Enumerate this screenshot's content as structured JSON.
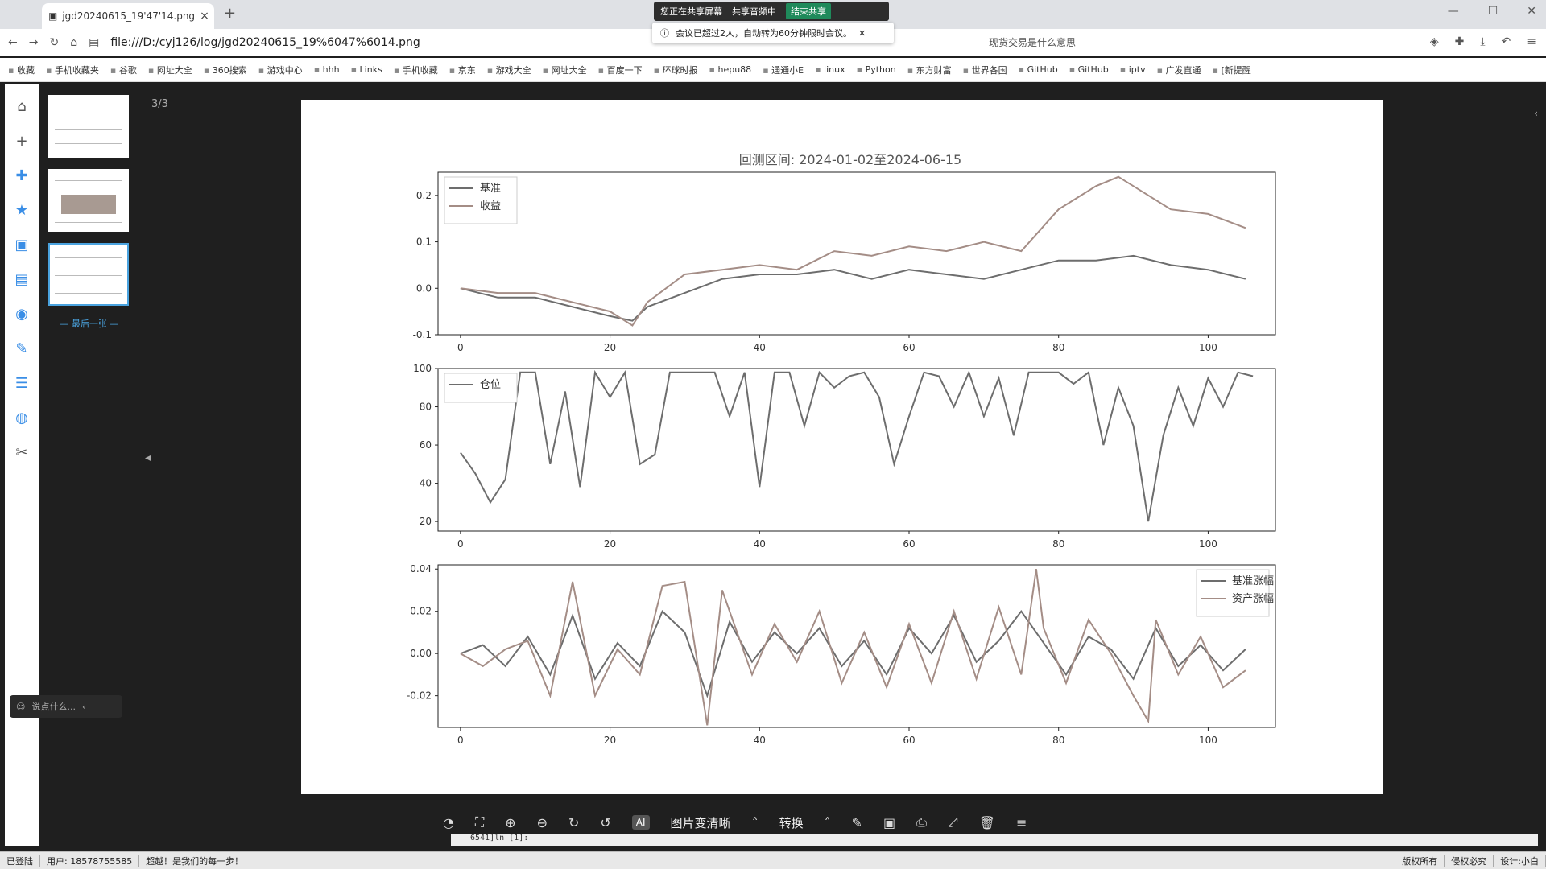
{
  "browser": {
    "tab_title": "jgd20240615_19'47'14.png",
    "tab_close": "×",
    "new_tab": "+",
    "share_status": "您正在共享屏幕",
    "share_audio": "共享音频中",
    "share_end": "结束共享",
    "meeting_notice": "会议已超过2人，自动转为60分钟限时会议。",
    "notice_close": "✕",
    "url": "file:///D:/cyj126/log/jgd20240615_19%6047%6014.png",
    "search_query": "现货交易是什么意思",
    "bookmarks": [
      "收藏",
      "手机收藏夹",
      "谷歌",
      "网址大全",
      "360搜索",
      "游戏中心",
      "hhh",
      "Links",
      "手机收藏",
      "京东",
      "游戏大全",
      "网址大全",
      "百度一下",
      "环球时报",
      "hepu88",
      "通通小E",
      "linux",
      "Python",
      "东方财富",
      "世界各国",
      "GitHub",
      "GitHub",
      "iptv",
      "广发直通",
      "[新提醒"
    ]
  },
  "viewer": {
    "page_count": "3/3",
    "last_label": "— 最后一张 —",
    "chat_placeholder": "说点什么...",
    "toolbar_ai": "AI",
    "toolbar_enhance": "图片变清晰",
    "toolbar_convert": "转换",
    "console_text": "6541]ln [1]:"
  },
  "chart_data": {
    "title": "回测区间: 2024-01-02至2024-06-15",
    "panels": [
      {
        "type": "line",
        "ylim": [
          -0.1,
          0.25
        ],
        "yticks": [
          "0.2",
          "0.1",
          "0.0",
          "-0.1"
        ],
        "ytick_values": [
          0.2,
          0.1,
          0.0,
          -0.1
        ],
        "xticks": [
          "0",
          "20",
          "40",
          "60",
          "80",
          "100"
        ],
        "legend": "top-left",
        "series": [
          {
            "name": "基准",
            "x": [
              0,
              5,
              10,
              15,
              20,
              23,
              25,
              30,
              35,
              40,
              45,
              50,
              55,
              60,
              65,
              70,
              75,
              80,
              85,
              90,
              95,
              100,
              105
            ],
            "values": [
              0.0,
              -0.02,
              -0.02,
              -0.04,
              -0.06,
              -0.07,
              -0.04,
              -0.01,
              0.02,
              0.03,
              0.03,
              0.04,
              0.02,
              0.04,
              0.03,
              0.02,
              0.04,
              0.06,
              0.06,
              0.07,
              0.05,
              0.04,
              0.02
            ]
          },
          {
            "name": "收益",
            "x": [
              0,
              5,
              10,
              15,
              20,
              23,
              25,
              30,
              35,
              40,
              45,
              50,
              55,
              60,
              65,
              70,
              75,
              80,
              85,
              88,
              90,
              95,
              100,
              105
            ],
            "values": [
              0.0,
              -0.01,
              -0.01,
              -0.03,
              -0.05,
              -0.08,
              -0.03,
              0.03,
              0.04,
              0.05,
              0.04,
              0.08,
              0.07,
              0.09,
              0.08,
              0.1,
              0.08,
              0.17,
              0.22,
              0.24,
              0.22,
              0.17,
              0.16,
              0.13
            ]
          }
        ]
      },
      {
        "type": "line",
        "ylim": [
          15,
          100
        ],
        "yticks": [
          "100",
          "80",
          "60",
          "40",
          "20"
        ],
        "ytick_values": [
          100,
          80,
          60,
          40,
          20
        ],
        "xticks": [
          "0",
          "20",
          "40",
          "60",
          "80",
          "100"
        ],
        "legend": "top-left",
        "series": [
          {
            "name": "仓位",
            "x": [
              0,
              2,
              4,
              6,
              8,
              10,
              12,
              14,
              16,
              18,
              20,
              22,
              24,
              26,
              28,
              30,
              32,
              34,
              36,
              38,
              40,
              42,
              44,
              46,
              48,
              50,
              52,
              54,
              56,
              58,
              60,
              62,
              64,
              66,
              68,
              70,
              72,
              74,
              76,
              78,
              80,
              82,
              84,
              86,
              88,
              90,
              92,
              94,
              96,
              98,
              100,
              102,
              104,
              106
            ],
            "values": [
              56,
              45,
              30,
              42,
              98,
              98,
              50,
              88,
              38,
              98,
              85,
              98,
              50,
              55,
              98,
              98,
              98,
              98,
              75,
              98,
              38,
              98,
              98,
              70,
              98,
              90,
              96,
              98,
              85,
              50,
              75,
              98,
              96,
              80,
              98,
              75,
              95,
              65,
              98,
              98,
              98,
              92,
              98,
              60,
              90,
              70,
              20,
              65,
              90,
              70,
              95,
              80,
              98,
              96
            ]
          }
        ]
      },
      {
        "type": "line",
        "ylim": [
          -0.035,
          0.042
        ],
        "yticks": [
          "0.04",
          "0.02",
          "0.00",
          "-0.02"
        ],
        "ytick_values": [
          0.04,
          0.02,
          0.0,
          -0.02
        ],
        "xticks": [
          "0",
          "20",
          "40",
          "60",
          "80",
          "100"
        ],
        "legend": "top-right",
        "series": [
          {
            "name": "基准涨幅",
            "x": [
              0,
              3,
              6,
              9,
              12,
              15,
              18,
              21,
              24,
              27,
              30,
              33,
              36,
              39,
              42,
              45,
              48,
              51,
              54,
              57,
              60,
              63,
              66,
              69,
              72,
              75,
              78,
              81,
              84,
              87,
              90,
              93,
              96,
              99,
              102,
              105
            ],
            "values": [
              0.0,
              0.004,
              -0.006,
              0.008,
              -0.01,
              0.018,
              -0.012,
              0.005,
              -0.006,
              0.02,
              0.01,
              -0.02,
              0.015,
              -0.004,
              0.01,
              0.0,
              0.012,
              -0.006,
              0.006,
              -0.01,
              0.012,
              0.0,
              0.018,
              -0.004,
              0.006,
              0.02,
              0.005,
              -0.01,
              0.008,
              0.002,
              -0.012,
              0.012,
              -0.006,
              0.004,
              -0.008,
              0.002
            ]
          },
          {
            "name": "资产涨幅",
            "x": [
              0,
              3,
              6,
              9,
              12,
              15,
              18,
              21,
              24,
              27,
              30,
              33,
              35,
              36,
              39,
              42,
              45,
              48,
              51,
              54,
              57,
              60,
              63,
              66,
              69,
              72,
              75,
              77,
              78,
              81,
              84,
              87,
              90,
              92,
              93,
              96,
              99,
              102,
              105
            ],
            "values": [
              0.0,
              -0.006,
              0.002,
              0.006,
              -0.02,
              0.034,
              -0.02,
              0.002,
              -0.01,
              0.032,
              0.034,
              -0.034,
              0.03,
              0.02,
              -0.01,
              0.014,
              -0.004,
              0.02,
              -0.014,
              0.01,
              -0.016,
              0.014,
              -0.014,
              0.02,
              -0.012,
              0.022,
              -0.01,
              0.04,
              0.012,
              -0.014,
              0.016,
              0.0,
              -0.02,
              -0.032,
              0.016,
              -0.01,
              0.008,
              -0.016,
              -0.008
            ]
          }
        ]
      }
    ]
  }
}
